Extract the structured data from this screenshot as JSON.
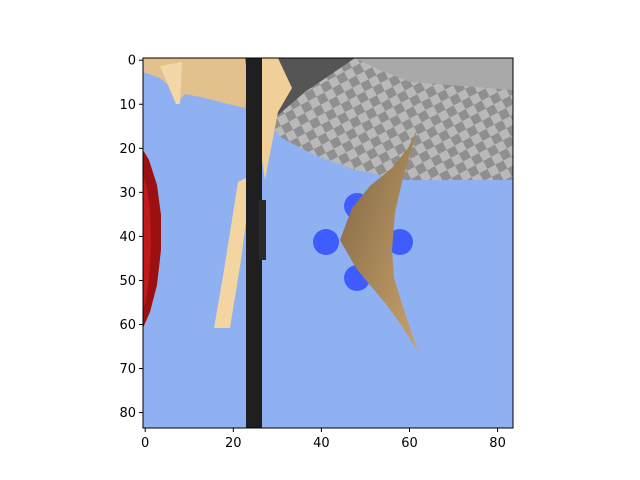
{
  "axes": {
    "x_ticks": [
      "0",
      "20",
      "40",
      "60",
      "80"
    ],
    "y_ticks": [
      "0",
      "10",
      "20",
      "30",
      "40",
      "50",
      "60",
      "70",
      "80"
    ],
    "xlim": [
      -0.5,
      83.5
    ],
    "ylim": [
      -0.5,
      83.5
    ],
    "y_inverted": true
  },
  "scene": {
    "sky_color": "#8fb1f1",
    "floor_color_light": "#bdbdbd",
    "floor_color_dark": "#8c8c8c",
    "pole_color": "#202020",
    "limb_color": "#f0cf98",
    "wing_color": "#9b7a55",
    "target_color": "#3f5cff",
    "disc_color": "#9b1010",
    "objects": [
      "sky",
      "checkered-floor",
      "dark-pole",
      "tan-limb",
      "red-disc",
      "blue-target",
      "brown-wing"
    ]
  }
}
